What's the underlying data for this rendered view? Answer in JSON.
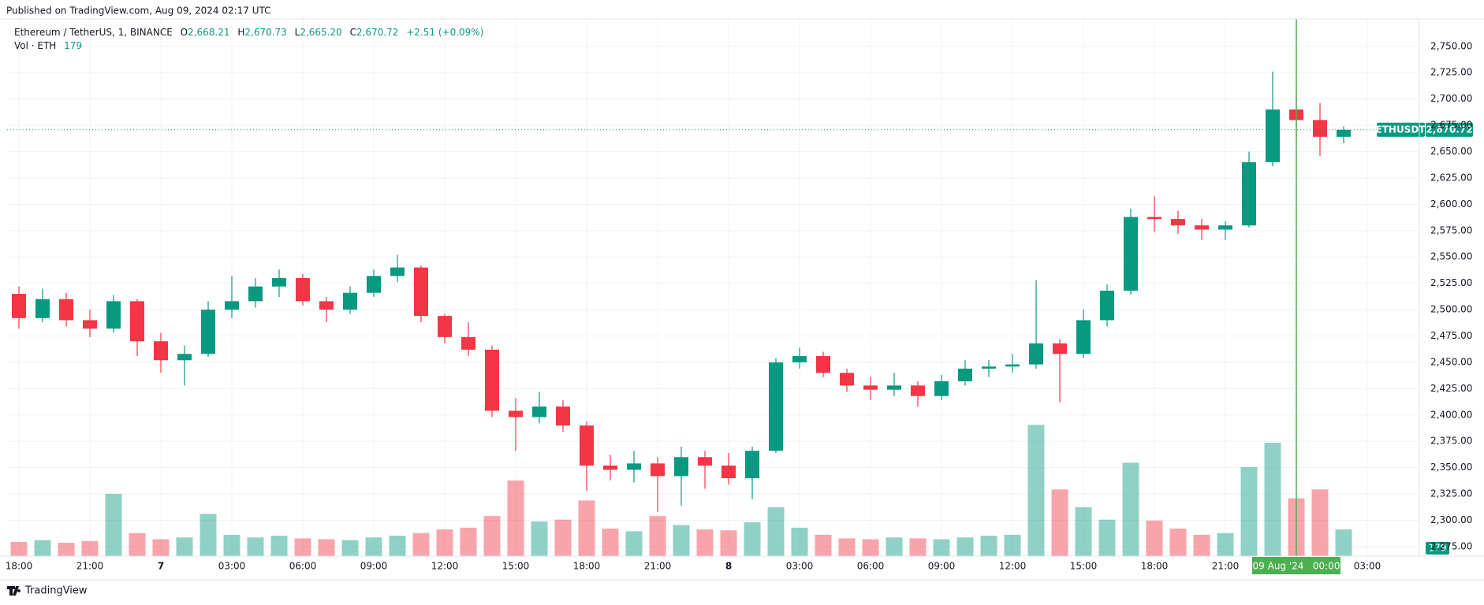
{
  "header": {
    "published": "Published on TradingView.com, Aug 09, 2024 02:17 UTC",
    "brand": "TradingView"
  },
  "chart_data": {
    "type": "candlestick",
    "legend": {
      "symbol": "Ethereum / TetherUS, 1, BINANCE",
      "o_key": "O",
      "open": "2,668.21",
      "h_key": "H",
      "high": "2,670.73",
      "l_key": "L",
      "low": "2,665.20",
      "c_key": "C",
      "close": "2,670.72",
      "change": "+2.51 (+0.09%)",
      "vol_key": "Vol · ETH",
      "vol": "179"
    },
    "x": [
      0,
      1,
      2,
      3,
      4,
      5,
      6,
      7,
      8,
      9,
      10,
      11,
      12,
      13,
      14,
      15,
      16,
      17,
      18,
      19,
      20,
      21,
      22,
      23,
      24,
      25,
      26,
      27,
      28,
      29,
      30,
      31,
      32,
      33,
      34,
      35,
      36,
      37,
      38,
      39,
      40,
      41,
      42,
      43,
      44,
      45,
      46,
      47,
      48,
      49,
      50,
      51,
      52,
      53,
      54,
      55,
      56
    ],
    "open": [
      2515,
      2492,
      2510,
      2490,
      2482,
      2508,
      2470,
      2452,
      2458,
      2500,
      2508,
      2522,
      2530,
      2508,
      2500,
      2516,
      2532,
      2540,
      2494,
      2474,
      2462,
      2404,
      2398,
      2408,
      2390,
      2352,
      2348,
      2354,
      2342,
      2360,
      2352,
      2340,
      2366,
      2450,
      2456,
      2440,
      2428,
      2424,
      2428,
      2418,
      2432,
      2444,
      2446,
      2448,
      2468,
      2458,
      2490,
      2518,
      2588,
      2586,
      2580,
      2576,
      2580,
      2640,
      2690,
      2680,
      2664
    ],
    "high": [
      2522,
      2520,
      2516,
      2500,
      2514,
      2510,
      2478,
      2466,
      2508,
      2532,
      2530,
      2538,
      2534,
      2512,
      2522,
      2538,
      2552,
      2542,
      2496,
      2488,
      2466,
      2416,
      2422,
      2414,
      2394,
      2362,
      2366,
      2360,
      2370,
      2366,
      2364,
      2370,
      2454,
      2464,
      2460,
      2444,
      2436,
      2440,
      2432,
      2438,
      2452,
      2452,
      2458,
      2528,
      2472,
      2500,
      2524,
      2596,
      2608,
      2594,
      2586,
      2584,
      2650,
      2726,
      2706,
      2696,
      2674
    ],
    "low": [
      2482,
      2488,
      2484,
      2474,
      2478,
      2456,
      2440,
      2428,
      2455,
      2492,
      2502,
      2512,
      2504,
      2488,
      2496,
      2512,
      2526,
      2488,
      2468,
      2456,
      2398,
      2366,
      2392,
      2384,
      2328,
      2338,
      2336,
      2308,
      2314,
      2330,
      2334,
      2320,
      2364,
      2444,
      2436,
      2422,
      2414,
      2418,
      2408,
      2414,
      2428,
      2436,
      2440,
      2444,
      2412,
      2454,
      2484,
      2514,
      2574,
      2572,
      2566,
      2566,
      2578,
      2636,
      2674,
      2646,
      2658
    ],
    "close": [
      2492,
      2510,
      2490,
      2482,
      2508,
      2470,
      2452,
      2458,
      2500,
      2508,
      2522,
      2530,
      2508,
      2500,
      2516,
      2532,
      2540,
      2494,
      2474,
      2462,
      2404,
      2398,
      2408,
      2390,
      2352,
      2348,
      2354,
      2342,
      2360,
      2352,
      2340,
      2366,
      2450,
      2456,
      2440,
      2428,
      2424,
      2428,
      2418,
      2432,
      2444,
      2446,
      2448,
      2468,
      2458,
      2490,
      2518,
      2588,
      2586,
      2580,
      2576,
      2580,
      2640,
      2690,
      2680,
      2664,
      2670.72
    ],
    "volume": [
      320,
      360,
      300,
      340,
      1400,
      520,
      380,
      420,
      950,
      480,
      420,
      460,
      400,
      380,
      360,
      420,
      460,
      520,
      600,
      640,
      900,
      1700,
      780,
      820,
      1250,
      620,
      560,
      900,
      700,
      600,
      580,
      760,
      1100,
      640,
      480,
      400,
      380,
      420,
      400,
      380,
      420,
      460,
      480,
      2950,
      1500,
      1100,
      820,
      2100,
      800,
      620,
      480,
      520,
      2000,
      2550,
      1300,
      1500,
      600
    ],
    "last_volume": {
      "value": 179,
      "label": "179"
    },
    "up_color": "#089981",
    "down_color": "#f23645",
    "xlim": [
      -0.5,
      59.2
    ],
    "xticks": [
      {
        "value": 0,
        "label": "18:00"
      },
      {
        "value": 3,
        "label": "21:00"
      },
      {
        "value": 6,
        "label": "7"
      },
      {
        "value": 9,
        "label": "03:00"
      },
      {
        "value": 12,
        "label": "06:00"
      },
      {
        "value": 15,
        "label": "09:00"
      },
      {
        "value": 18,
        "label": "12:00"
      },
      {
        "value": 21,
        "label": "15:00"
      },
      {
        "value": 24,
        "label": "18:00"
      },
      {
        "value": 27,
        "label": "21:00"
      },
      {
        "value": 30,
        "label": "8"
      },
      {
        "value": 33,
        "label": "03:00"
      },
      {
        "value": 36,
        "label": "06:00"
      },
      {
        "value": 39,
        "label": "09:00"
      },
      {
        "value": 42,
        "label": "12:00"
      },
      {
        "value": 45,
        "label": "15:00"
      },
      {
        "value": 48,
        "label": "18:00"
      },
      {
        "value": 51,
        "label": "21:00"
      },
      {
        "value": 57,
        "label": "03:00"
      }
    ],
    "ylim": [
      2266,
      2776
    ],
    "yticks": [
      {
        "value": 2275,
        "label": "2,275.00"
      },
      {
        "value": 2300,
        "label": "2,300.00"
      },
      {
        "value": 2325,
        "label": "2,325.00"
      },
      {
        "value": 2350,
        "label": "2,350.00"
      },
      {
        "value": 2375,
        "label": "2,375.00"
      },
      {
        "value": 2400,
        "label": "2,400.00"
      },
      {
        "value": 2425,
        "label": "2,425.00"
      },
      {
        "value": 2450,
        "label": "2,450.00"
      },
      {
        "value": 2475,
        "label": "2,475.00"
      },
      {
        "value": 2500,
        "label": "2,500.00"
      },
      {
        "value": 2525,
        "label": "2,525.00"
      },
      {
        "value": 2550,
        "label": "2,550.00"
      },
      {
        "value": 2575,
        "label": "2,575.00"
      },
      {
        "value": 2600,
        "label": "2,600.00"
      },
      {
        "value": 2625,
        "label": "2,625.00"
      },
      {
        "value": 2650,
        "label": "2,650.00"
      },
      {
        "value": 2675,
        "label": "2,675.00"
      },
      {
        "value": 2700,
        "label": "2,700.00"
      },
      {
        "value": 2725,
        "label": "2,725.00"
      },
      {
        "value": 2750,
        "label": "2,750.00"
      }
    ],
    "y2lim": [
      0,
      4000
    ],
    "grid": true,
    "last_price": {
      "symbol": "ETHUSDT",
      "value": 2670.72,
      "label": "2,670.72",
      "color": "#089981"
    },
    "crosshair": {
      "value": 54,
      "label": "09 Aug '24   00:00",
      "color": "#4caf50"
    }
  }
}
